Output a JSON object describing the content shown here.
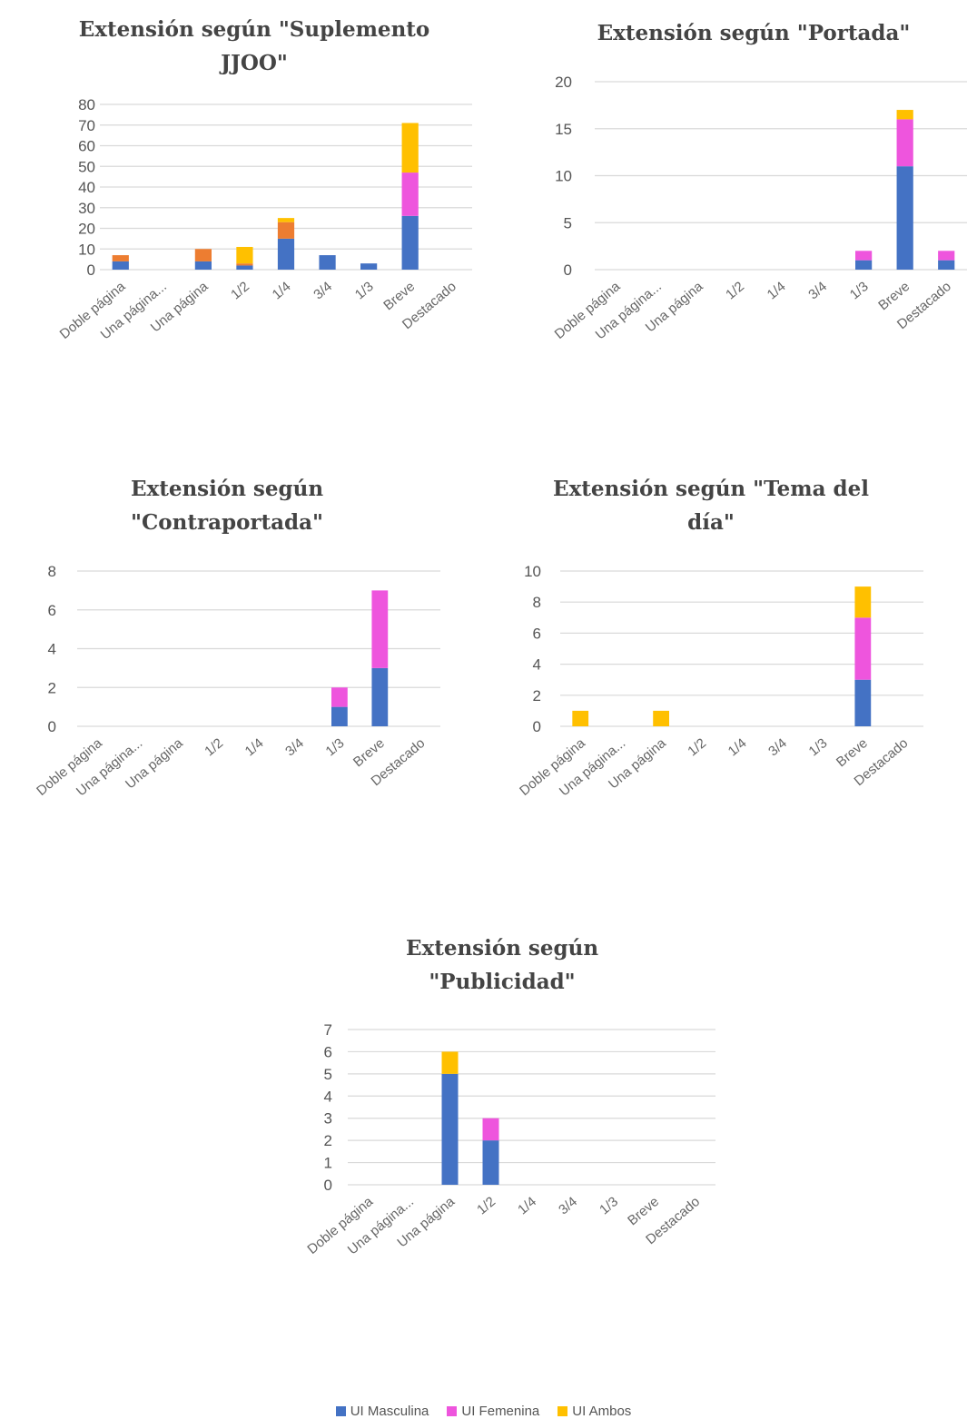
{
  "colors": {
    "masculina": "#4472C4",
    "femenina": "#EE55DD",
    "ambos": "#FFC000",
    "orange": "#ED7D31",
    "grid": "#D9D9D9"
  },
  "legend": {
    "items": [
      {
        "label": "UI Masculina",
        "color": "#4472C4"
      },
      {
        "label": "UI Femenina",
        "color": "#EE55DD"
      },
      {
        "label": "UI Ambos",
        "color": "#FFC000"
      }
    ]
  },
  "chart_data": [
    {
      "type": "bar",
      "stacked": true,
      "title_lines": [
        "Extensión según \"Suplemento",
        "JJOO\""
      ],
      "categories": [
        "Doble página",
        "Una página...",
        "Una página",
        "1/2",
        "1/4",
        "3/4",
        "1/3",
        "Breve",
        "Destacado"
      ],
      "ylim": [
        0,
        80
      ],
      "yticks": [
        "0",
        "10",
        "20",
        "30",
        "40",
        "50",
        "60",
        "70",
        "80"
      ],
      "series": [
        {
          "name": "UI Masculina",
          "color": "#4472C4",
          "values": [
            4,
            0,
            4,
            2,
            15,
            7,
            3,
            26,
            0
          ]
        },
        {
          "name": "UI Femenina",
          "color": "#EE55DD",
          "values": [
            0,
            0,
            0,
            0,
            0,
            0,
            0,
            21,
            0
          ]
        },
        {
          "color": "#ED7D31",
          "values": [
            3,
            0,
            6,
            1,
            8,
            0,
            0,
            0,
            0
          ]
        },
        {
          "name": "UI Ambos",
          "color": "#FFC000",
          "values": [
            0,
            0,
            0,
            8,
            2,
            0,
            0,
            24,
            0
          ]
        }
      ]
    },
    {
      "type": "bar",
      "stacked": true,
      "title_lines": [
        "Extensión según \"Portada\""
      ],
      "categories": [
        "Doble página",
        "Una página...",
        "Una página",
        "1/2",
        "1/4",
        "3/4",
        "1/3",
        "Breve",
        "Destacado"
      ],
      "ylim": [
        0,
        20
      ],
      "yticks": [
        "0",
        "5",
        "10",
        "15",
        "20"
      ],
      "series": [
        {
          "name": "UI Masculina",
          "color": "#4472C4",
          "values": [
            0,
            0,
            0,
            0,
            0,
            0,
            1,
            11,
            1
          ]
        },
        {
          "name": "UI Femenina",
          "color": "#EE55DD",
          "values": [
            0,
            0,
            0,
            0,
            0,
            0,
            1,
            5,
            1
          ]
        },
        {
          "name": "UI Ambos",
          "color": "#FFC000",
          "values": [
            0,
            0,
            0,
            0,
            0,
            0,
            0,
            1,
            0
          ]
        }
      ]
    },
    {
      "type": "bar",
      "stacked": true,
      "title_lines": [
        "Extensión según",
        "\"Contraportada\""
      ],
      "categories": [
        "Doble página",
        "Una página...",
        "Una página",
        "1/2",
        "1/4",
        "3/4",
        "1/3",
        "Breve",
        "Destacado"
      ],
      "ylim": [
        0,
        8
      ],
      "yticks": [
        "0",
        "2",
        "4",
        "6",
        "8"
      ],
      "series": [
        {
          "name": "UI Masculina",
          "color": "#4472C4",
          "values": [
            0,
            0,
            0,
            0,
            0,
            0,
            1,
            3,
            0
          ]
        },
        {
          "name": "UI Femenina",
          "color": "#EE55DD",
          "values": [
            0,
            0,
            0,
            0,
            0,
            0,
            1,
            4,
            0
          ]
        },
        {
          "name": "UI Ambos",
          "color": "#FFC000",
          "values": [
            0,
            0,
            0,
            0,
            0,
            0,
            0,
            0,
            0
          ]
        }
      ]
    },
    {
      "type": "bar",
      "stacked": true,
      "title_lines": [
        "Extensión según \"Tema del",
        "día\""
      ],
      "categories": [
        "Doble página",
        "Una página...",
        "Una página",
        "1/2",
        "1/4",
        "3/4",
        "1/3",
        "Breve",
        "Destacado"
      ],
      "ylim": [
        0,
        10
      ],
      "yticks": [
        "0",
        "2",
        "4",
        "6",
        "8",
        "10"
      ],
      "series": [
        {
          "name": "UI Masculina",
          "color": "#4472C4",
          "values": [
            0,
            0,
            0,
            0,
            0,
            0,
            0,
            3,
            0
          ]
        },
        {
          "name": "UI Femenina",
          "color": "#EE55DD",
          "values": [
            0,
            0,
            0,
            0,
            0,
            0,
            0,
            4,
            0
          ]
        },
        {
          "name": "UI Ambos",
          "color": "#FFC000",
          "values": [
            1,
            0,
            1,
            0,
            0,
            0,
            0,
            2,
            0
          ]
        }
      ]
    },
    {
      "type": "bar",
      "stacked": true,
      "title_lines": [
        "Extensión según",
        "\"Publicidad\""
      ],
      "categories": [
        "Doble página",
        "Una página...",
        "Una página",
        "1/2",
        "1/4",
        "3/4",
        "1/3",
        "Breve",
        "Destacado"
      ],
      "ylim": [
        0,
        7
      ],
      "yticks": [
        "0",
        "1",
        "2",
        "3",
        "4",
        "5",
        "6",
        "7"
      ],
      "series": [
        {
          "name": "UI Masculina",
          "color": "#4472C4",
          "values": [
            0,
            0,
            5,
            2,
            0,
            0,
            0,
            0,
            0
          ]
        },
        {
          "name": "UI Femenina",
          "color": "#EE55DD",
          "values": [
            0,
            0,
            0,
            1,
            0,
            0,
            0,
            0,
            0
          ]
        },
        {
          "name": "UI Ambos",
          "color": "#FFC000",
          "values": [
            0,
            0,
            1,
            0,
            0,
            0,
            0,
            0,
            0
          ]
        }
      ]
    }
  ]
}
